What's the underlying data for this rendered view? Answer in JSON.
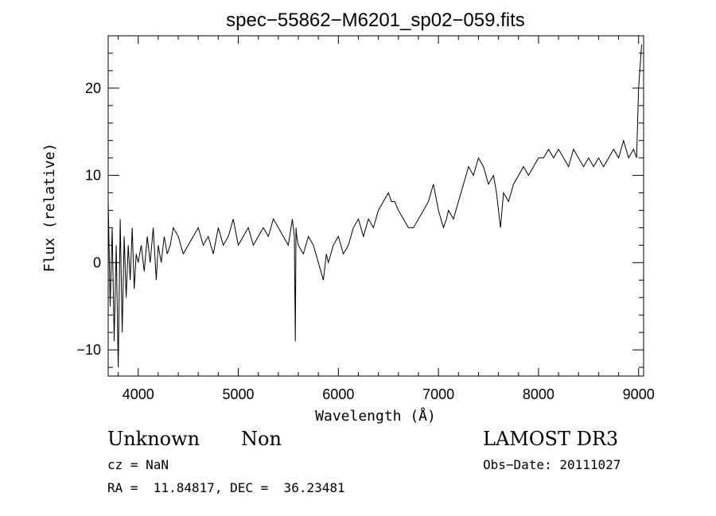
{
  "chart_data": {
    "type": "line",
    "title": "spec−55862−M6201_sp02−059.fits",
    "xlabel": "Wavelength (Å)",
    "ylabel": "Flux (relative)",
    "xlim": [
      3700,
      9050
    ],
    "ylim": [
      -13,
      26
    ],
    "xticks": [
      4000,
      5000,
      6000,
      7000,
      8000,
      9000
    ],
    "yticks": [
      -10,
      0,
      10,
      20
    ],
    "grid": false,
    "line_color": "#000000",
    "series": [
      {
        "x": [
          3700,
          3720,
          3740,
          3760,
          3780,
          3800,
          3820,
          3840,
          3860,
          3880,
          3900,
          3920,
          3940,
          3960,
          3980,
          4000,
          4030,
          4060,
          4090,
          4120,
          4150,
          4180,
          4200,
          4230,
          4260,
          4290,
          4320,
          4350,
          4400,
          4450,
          4500,
          4550,
          4600,
          4650,
          4700,
          4750,
          4800,
          4850,
          4900,
          4950,
          5000,
          5050,
          5100,
          5150,
          5200,
          5250,
          5300,
          5350,
          5400,
          5450,
          5500,
          5540,
          5560,
          5570,
          5577,
          5584,
          5600,
          5650,
          5700,
          5750,
          5800,
          5850,
          5880,
          5900,
          5950,
          6000,
          6050,
          6100,
          6150,
          6200,
          6250,
          6300,
          6350,
          6400,
          6450,
          6500,
          6530,
          6563,
          6600,
          6650,
          6700,
          6750,
          6800,
          6850,
          6900,
          6950,
          7000,
          7050,
          7080,
          7100,
          7150,
          7200,
          7250,
          7300,
          7350,
          7400,
          7450,
          7500,
          7550,
          7580,
          7600,
          7620,
          7650,
          7700,
          7750,
          7800,
          7850,
          7900,
          7950,
          8000,
          8050,
          8100,
          8150,
          8200,
          8250,
          8300,
          8350,
          8400,
          8450,
          8500,
          8550,
          8600,
          8650,
          8700,
          8750,
          8800,
          8850,
          8900,
          8950,
          8980,
          9000,
          9030
        ],
        "y": [
          7,
          -5,
          4,
          -9,
          2,
          -12,
          5,
          -8,
          3,
          -4,
          2,
          -2,
          4,
          -3,
          1,
          0,
          2,
          -1,
          3,
          0,
          4,
          -2,
          2,
          0,
          3,
          1,
          2,
          4,
          3,
          1,
          2,
          3,
          4,
          2,
          3,
          1,
          4,
          2,
          3,
          5,
          2,
          3,
          4,
          2,
          3,
          4,
          3,
          5,
          4,
          3,
          2,
          5,
          3,
          -9,
          4,
          3,
          2,
          1,
          3,
          2,
          0,
          -2,
          1,
          0,
          2,
          3,
          1,
          2,
          4,
          5,
          3,
          5,
          4,
          6,
          7,
          8,
          7,
          7,
          6,
          5,
          4,
          4,
          5,
          6,
          7,
          9,
          6,
          4,
          5,
          6,
          5,
          7,
          9,
          11,
          10,
          12,
          11,
          9,
          10,
          8,
          6,
          4,
          8,
          7,
          9,
          10,
          11,
          10,
          11,
          12,
          12,
          13,
          12,
          13,
          12,
          11,
          13,
          12,
          11,
          12,
          11,
          12,
          11,
          12,
          13,
          12,
          14,
          12,
          13,
          12,
          20,
          25
        ]
      }
    ],
    "annotations": {
      "obj_class": "Unknown",
      "subclass": "Non",
      "survey": "LAMOST DR3",
      "cz": "cz = NaN",
      "obs_date": "Obs−Date: 20111027",
      "coords": "RA =  11.84817, DEC =  36.23481"
    }
  }
}
